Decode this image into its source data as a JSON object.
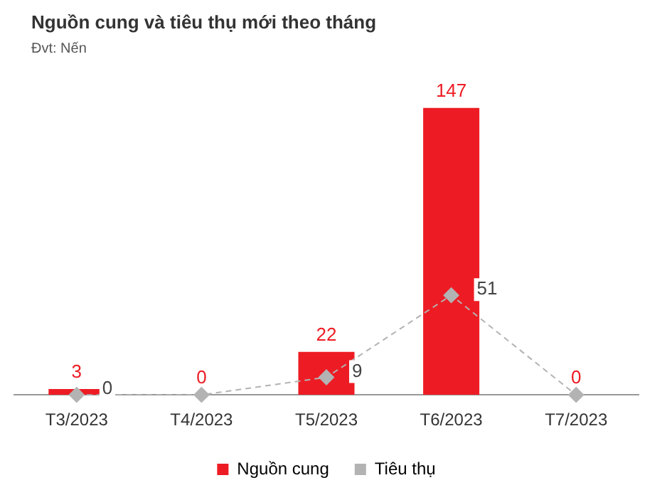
{
  "chart_data": {
    "type": "bar",
    "title": "Nguồn cung và tiêu thụ mới theo tháng",
    "subtitle": "Đvt: Nến",
    "categories": [
      "T3/2023",
      "T4/2023",
      "T5/2023",
      "T6/2023",
      "T7/2023"
    ],
    "series": [
      {
        "name": "Nguồn cung",
        "color": "#ed1c24",
        "values": [
          3,
          0,
          22,
          147,
          0
        ],
        "value_labels": [
          "3",
          "0",
          "22",
          "147",
          "0"
        ]
      },
      {
        "name": "Tiêu thụ",
        "type": "line",
        "color": "#b3b3b3",
        "values": [
          0,
          0,
          9,
          51,
          0
        ],
        "value_labels": [
          "0",
          null,
          "9",
          "51",
          null
        ]
      }
    ],
    "grid": false,
    "legend": "bottom",
    "marker": "diamond",
    "line_style": "dashed"
  }
}
